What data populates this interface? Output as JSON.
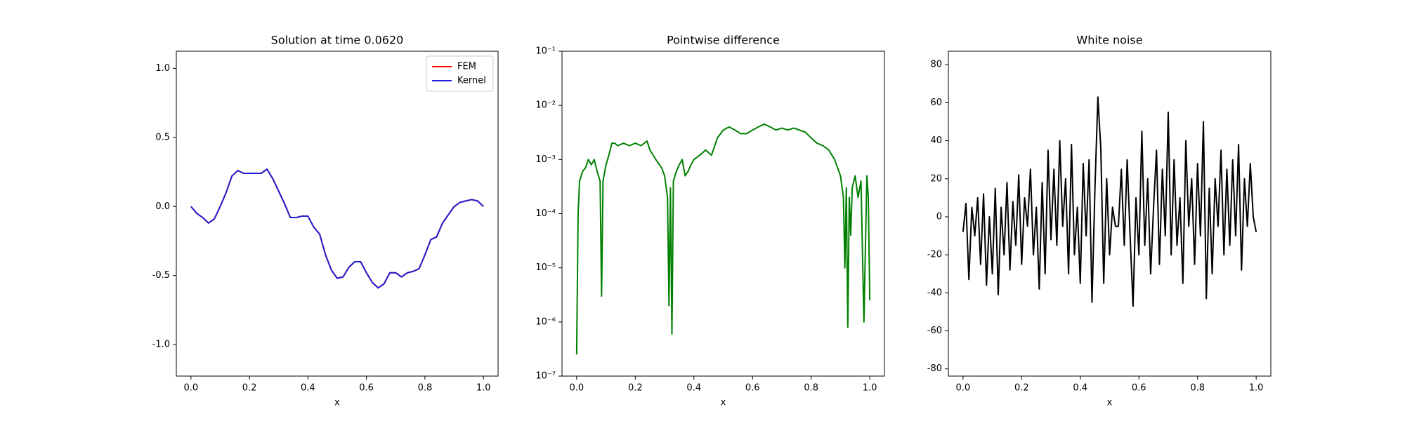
{
  "chart_data": [
    {
      "type": "line",
      "title": "Solution at time 0.0620",
      "xlabel": "x",
      "xlim": [
        -0.05,
        1.05
      ],
      "xticks": [
        {
          "value": 0,
          "label": "0.0"
        },
        0.2,
        0.4,
        0.6,
        0.8,
        {
          "value": 1,
          "label": "1.0"
        }
      ],
      "ylim": [
        -1.228,
        1.124
      ],
      "yticks": [
        {
          "value": -1,
          "label": "-1.0"
        },
        -0.5,
        {
          "value": 0,
          "label": "0.0"
        },
        0.5,
        {
          "value": 1,
          "label": "1.0"
        }
      ],
      "legend": "upper right",
      "x": [
        0,
        0.02,
        0.04,
        0.06,
        0.08,
        0.1,
        0.12,
        0.14,
        0.16,
        0.18,
        0.2,
        0.22,
        0.24,
        0.26,
        0.28,
        0.3,
        0.32,
        0.34,
        0.36,
        0.38,
        0.4,
        0.42,
        0.44,
        0.46,
        0.48,
        0.5,
        0.52,
        0.54,
        0.56,
        0.58,
        0.6,
        0.62,
        0.64,
        0.66,
        0.68,
        0.7,
        0.72,
        0.74,
        0.76,
        0.78,
        0.8,
        0.82,
        0.84,
        0.86,
        0.88,
        0.9,
        0.92,
        0.94,
        0.96,
        0.98,
        1
      ],
      "series": [
        {
          "name": "FEM",
          "color": "#ff0000",
          "values": [
            0,
            -0.05,
            -0.08,
            -0.12,
            -0.09,
            0,
            0.1,
            0.22,
            0.26,
            0.24,
            0.24,
            0.24,
            0.24,
            0.27,
            0.2,
            0.11,
            0.02,
            -0.08,
            -0.08,
            -0.07,
            -0.07,
            -0.15,
            -0.2,
            -0.35,
            -0.46,
            -0.52,
            -0.51,
            -0.44,
            -0.4,
            -0.4,
            -0.48,
            -0.55,
            -0.59,
            -0.56,
            -0.48,
            -0.48,
            -0.51,
            -0.48,
            -0.47,
            -0.45,
            -0.35,
            -0.24,
            -0.22,
            -0.12,
            -0.06,
            0,
            0.03,
            0.04,
            0.05,
            0.04,
            0
          ]
        },
        {
          "name": "Kernel",
          "color": "#1f1fd0",
          "values": [
            0,
            -0.05,
            -0.08,
            -0.12,
            -0.09,
            0,
            0.1,
            0.22,
            0.26,
            0.24,
            0.24,
            0.24,
            0.24,
            0.27,
            0.2,
            0.11,
            0.02,
            -0.08,
            -0.08,
            -0.07,
            -0.07,
            -0.15,
            -0.2,
            -0.35,
            -0.46,
            -0.52,
            -0.51,
            -0.44,
            -0.4,
            -0.4,
            -0.48,
            -0.55,
            -0.59,
            -0.56,
            -0.48,
            -0.48,
            -0.51,
            -0.48,
            -0.47,
            -0.45,
            -0.35,
            -0.24,
            -0.22,
            -0.12,
            -0.06,
            0,
            0.03,
            0.04,
            0.05,
            0.04,
            0
          ]
        }
      ]
    },
    {
      "type": "line",
      "title": "Pointwise difference",
      "xlabel": "x",
      "yscale": "log",
      "xlim": [
        -0.05,
        1.05
      ],
      "xticks": [
        {
          "value": 0,
          "label": "0.0"
        },
        0.2,
        0.4,
        0.6,
        0.8,
        {
          "value": 1,
          "label": "1.0"
        }
      ],
      "ylim": [
        1e-07,
        0.1
      ],
      "yticks": [
        {
          "value": 1e-07,
          "label": "10⁻⁷"
        },
        {
          "value": 1e-06,
          "label": "10⁻⁶"
        },
        {
          "value": 1e-05,
          "label": "10⁻⁵"
        },
        {
          "value": 0.0001,
          "label": "10⁻⁴"
        },
        {
          "value": 0.001,
          "label": "10⁻³"
        },
        {
          "value": 0.01,
          "label": "10⁻²"
        },
        {
          "value": 0.1,
          "label": "10⁻¹"
        }
      ],
      "x": [
        0,
        0.005,
        0.01,
        0.02,
        0.03,
        0.04,
        0.05,
        0.06,
        0.07,
        0.08,
        0.085,
        0.09,
        0.1,
        0.11,
        0.12,
        0.13,
        0.14,
        0.16,
        0.18,
        0.2,
        0.22,
        0.24,
        0.25,
        0.27,
        0.29,
        0.3,
        0.31,
        0.315,
        0.32,
        0.325,
        0.33,
        0.34,
        0.35,
        0.36,
        0.37,
        0.38,
        0.39,
        0.4,
        0.42,
        0.44,
        0.46,
        0.48,
        0.5,
        0.52,
        0.54,
        0.56,
        0.58,
        0.6,
        0.62,
        0.64,
        0.66,
        0.68,
        0.7,
        0.72,
        0.74,
        0.76,
        0.78,
        0.8,
        0.82,
        0.84,
        0.86,
        0.88,
        0.9,
        0.91,
        0.915,
        0.92,
        0.925,
        0.93,
        0.935,
        0.94,
        0.95,
        0.96,
        0.97,
        0.98,
        0.99,
        0.995,
        1
      ],
      "series": [
        {
          "color": "#008000",
          "values": [
            2.5e-07,
            0.0001,
            0.0004,
            0.0006,
            0.0007,
            0.001,
            0.0008,
            0.001,
            0.0006,
            0.0004,
            3e-06,
            0.0004,
            0.0008,
            0.0012,
            0.002,
            0.002,
            0.0018,
            0.002,
            0.0018,
            0.002,
            0.0018,
            0.0022,
            0.0015,
            0.001,
            0.0007,
            0.0005,
            0.0002,
            2e-06,
            0.0003,
            6e-07,
            0.0004,
            0.0006,
            0.0008,
            0.001,
            0.0005,
            0.0006,
            0.0008,
            0.001,
            0.0012,
            0.0015,
            0.0012,
            0.0025,
            0.0035,
            0.004,
            0.0035,
            0.003,
            0.003,
            0.0035,
            0.004,
            0.0045,
            0.004,
            0.0035,
            0.0038,
            0.0035,
            0.0038,
            0.0035,
            0.0032,
            0.0025,
            0.002,
            0.0018,
            0.0015,
            0.001,
            0.0005,
            0.0002,
            1e-05,
            0.0003,
            8e-07,
            0.0002,
            4e-05,
            0.0003,
            0.0005,
            0.0002,
            0.0004,
            1e-06,
            0.0005,
            0.0002,
            2.5e-06
          ]
        }
      ]
    },
    {
      "type": "line",
      "title": "White noise",
      "xlabel": "x",
      "xlim": [
        -0.05,
        1.05
      ],
      "xticks": [
        {
          "value": 0,
          "label": "0.0"
        },
        0.2,
        0.4,
        0.6,
        0.8,
        {
          "value": 1,
          "label": "1.0"
        }
      ],
      "ylim": [
        -83.8,
        87.1
      ],
      "yticks": [
        -80,
        -60,
        -40,
        -20,
        0,
        20,
        40,
        60,
        80
      ],
      "x": [
        0,
        0.01,
        0.02,
        0.03,
        0.04,
        0.05,
        0.06,
        0.07,
        0.08,
        0.09,
        0.1,
        0.11,
        0.12,
        0.13,
        0.14,
        0.15,
        0.16,
        0.17,
        0.18,
        0.19,
        0.2,
        0.21,
        0.22,
        0.23,
        0.24,
        0.25,
        0.26,
        0.27,
        0.28,
        0.29,
        0.3,
        0.31,
        0.32,
        0.33,
        0.34,
        0.35,
        0.36,
        0.37,
        0.38,
        0.39,
        0.4,
        0.41,
        0.42,
        0.43,
        0.44,
        0.45,
        0.46,
        0.47,
        0.48,
        0.49,
        0.5,
        0.51,
        0.52,
        0.53,
        0.54,
        0.55,
        0.56,
        0.57,
        0.58,
        0.59,
        0.6,
        0.61,
        0.62,
        0.63,
        0.64,
        0.65,
        0.66,
        0.67,
        0.68,
        0.69,
        0.7,
        0.71,
        0.72,
        0.73,
        0.74,
        0.75,
        0.76,
        0.77,
        0.78,
        0.79,
        0.8,
        0.81,
        0.82,
        0.83,
        0.84,
        0.85,
        0.86,
        0.87,
        0.88,
        0.89,
        0.9,
        0.91,
        0.92,
        0.93,
        0.94,
        0.95,
        0.96,
        0.97,
        0.98,
        0.99,
        1
      ],
      "series": [
        {
          "color": "#000000",
          "values": [
            -8,
            7,
            -33,
            5,
            -10,
            10,
            -25,
            12,
            -36,
            0,
            -30,
            15,
            -41,
            5,
            -20,
            18,
            -28,
            8,
            -15,
            22,
            -25,
            10,
            -5,
            25,
            -20,
            5,
            -38,
            18,
            -30,
            35,
            -12,
            25,
            -15,
            40,
            -5,
            20,
            -30,
            38,
            -20,
            5,
            -35,
            28,
            -10,
            30,
            -45,
            15,
            63,
            36,
            -35,
            20,
            -20,
            5,
            -5,
            -5,
            25,
            -15,
            30,
            -10,
            -47,
            10,
            -20,
            45,
            -15,
            20,
            -30,
            5,
            35,
            -25,
            25,
            -10,
            55,
            -20,
            30,
            -15,
            10,
            -35,
            40,
            -5,
            20,
            -25,
            28,
            -10,
            50,
            -43,
            15,
            -30,
            20,
            -5,
            35,
            -20,
            25,
            -15,
            30,
            -10,
            38,
            -28,
            20,
            -5,
            28,
            0,
            -8
          ]
        }
      ]
    }
  ]
}
